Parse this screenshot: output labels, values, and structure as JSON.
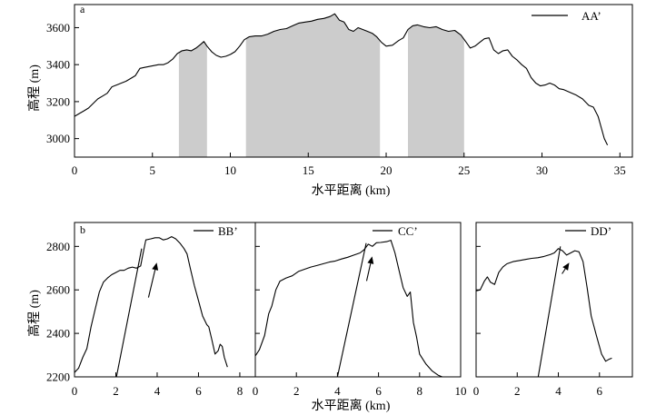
{
  "figure": {
    "row_a": {
      "panel_label": "a",
      "xlabel": "水平距离 (km)",
      "ylabel": "高程 (m)"
    },
    "row_b": {
      "panel_label": "b",
      "xlabel": "水平距离 (km)",
      "ylabel": "高程 (m)"
    }
  },
  "style": {
    "line_color": "#000000",
    "shade_color": "#cccccc",
    "frame_color": "#000000"
  },
  "chart_data": [
    {
      "type": "line",
      "xlim": [
        0,
        35.8
      ],
      "ylim": [
        2900,
        3725
      ],
      "xticks": [
        0,
        5,
        10,
        15,
        20,
        25,
        30,
        35
      ],
      "yticks": [
        3000,
        3200,
        3400,
        3600
      ],
      "ytick_labels_shown": true,
      "legend": "top-right",
      "shaded_x_ranges": [
        [
          6.7,
          8.5
        ],
        [
          11.0,
          19.6
        ],
        [
          21.4,
          25.0
        ]
      ],
      "series": [
        {
          "name": "AA’",
          "x": [
            0,
            0.3,
            0.6,
            0.9,
            1.2,
            1.5,
            1.8,
            2.1,
            2.4,
            2.7,
            3.0,
            3.3,
            3.6,
            3.9,
            4.2,
            4.5,
            4.8,
            5.1,
            5.4,
            5.7,
            6.0,
            6.3,
            6.6,
            6.9,
            7.2,
            7.5,
            7.8,
            8.1,
            8.3,
            8.5,
            8.8,
            9.1,
            9.4,
            9.7,
            10.0,
            10.3,
            10.6,
            10.9,
            11.2,
            11.6,
            12.0,
            12.4,
            12.8,
            13.2,
            13.6,
            14.0,
            14.4,
            14.8,
            15.2,
            15.6,
            16.0,
            16.4,
            16.7,
            17.0,
            17.3,
            17.6,
            17.9,
            18.2,
            18.5,
            18.8,
            19.1,
            19.4,
            19.7,
            20.0,
            20.4,
            20.8,
            21.1,
            21.4,
            21.7,
            22.0,
            22.4,
            22.8,
            23.2,
            23.6,
            24.0,
            24.4,
            24.8,
            25.1,
            25.4,
            25.7,
            26.0,
            26.3,
            26.6,
            26.9,
            27.2,
            27.5,
            27.8,
            28.1,
            28.4,
            28.7,
            29.0,
            29.3,
            29.6,
            29.9,
            30.2,
            30.5,
            30.8,
            31.1,
            31.4,
            31.8,
            32.2,
            32.6,
            33.0,
            33.3,
            33.6,
            33.8,
            34.0,
            34.2
          ],
          "y": [
            3120,
            3135,
            3150,
            3165,
            3190,
            3215,
            3230,
            3245,
            3280,
            3290,
            3300,
            3310,
            3325,
            3340,
            3380,
            3385,
            3390,
            3395,
            3400,
            3400,
            3410,
            3430,
            3460,
            3475,
            3480,
            3475,
            3490,
            3510,
            3525,
            3500,
            3470,
            3450,
            3440,
            3445,
            3455,
            3470,
            3500,
            3535,
            3550,
            3555,
            3555,
            3565,
            3580,
            3590,
            3595,
            3610,
            3625,
            3630,
            3635,
            3645,
            3650,
            3660,
            3675,
            3640,
            3630,
            3590,
            3580,
            3600,
            3590,
            3580,
            3570,
            3550,
            3520,
            3500,
            3505,
            3530,
            3545,
            3590,
            3610,
            3615,
            3605,
            3600,
            3605,
            3590,
            3580,
            3585,
            3560,
            3525,
            3490,
            3500,
            3520,
            3540,
            3545,
            3480,
            3460,
            3475,
            3480,
            3445,
            3425,
            3400,
            3380,
            3330,
            3300,
            3285,
            3290,
            3300,
            3290,
            3270,
            3265,
            3250,
            3235,
            3215,
            3180,
            3170,
            3120,
            3060,
            3000,
            2965
          ]
        }
      ]
    },
    {
      "type": "line",
      "xlim": [
        0,
        8.75
      ],
      "ylim": [
        2200,
        2910
      ],
      "xticks": [
        0,
        2,
        4,
        6,
        8
      ],
      "yticks": [
        2200,
        2400,
        2600,
        2800
      ],
      "ytick_labels_shown": true,
      "legend": "top-right",
      "series": [
        {
          "name": "BB’",
          "x": [
            0,
            0.2,
            0.4,
            0.6,
            0.8,
            1.0,
            1.2,
            1.4,
            1.6,
            1.8,
            2.0,
            2.2,
            2.4,
            2.6,
            2.8,
            3.0,
            3.2,
            3.3,
            3.45,
            3.7,
            3.9,
            4.1,
            4.3,
            4.5,
            4.7,
            4.9,
            5.1,
            5.3,
            5.45,
            5.6,
            5.8,
            6.0,
            6.2,
            6.4,
            6.5,
            6.65,
            6.8,
            6.95,
            7.05,
            7.15,
            7.25,
            7.4
          ],
          "y": [
            2220,
            2240,
            2290,
            2330,
            2430,
            2510,
            2590,
            2635,
            2655,
            2670,
            2680,
            2690,
            2690,
            2700,
            2705,
            2700,
            2710,
            2760,
            2830,
            2835,
            2840,
            2840,
            2830,
            2835,
            2845,
            2835,
            2815,
            2790,
            2765,
            2700,
            2620,
            2550,
            2480,
            2440,
            2430,
            2370,
            2305,
            2320,
            2350,
            2340,
            2290,
            2245
          ]
        }
      ],
      "straight_line": {
        "x": [
          2.03,
          3.25
        ],
        "y": [
          2200,
          2790
        ]
      },
      "arrow": {
        "from": [
          3.58,
          2565
        ],
        "to": [
          3.98,
          2725
        ]
      }
    },
    {
      "type": "line",
      "xlim": [
        0,
        10
      ],
      "ylim": [
        2200,
        2910
      ],
      "xticks": [
        0,
        2,
        4,
        6,
        8,
        10
      ],
      "yticks": [
        2200,
        2400,
        2600,
        2800
      ],
      "ytick_labels_shown": false,
      "legend": "top-right",
      "series": [
        {
          "name": "CC’",
          "x": [
            0,
            0.2,
            0.45,
            0.65,
            0.8,
            1.0,
            1.2,
            1.5,
            1.8,
            2.1,
            2.4,
            2.7,
            3.0,
            3.3,
            3.6,
            3.9,
            4.2,
            4.5,
            4.8,
            5.1,
            5.3,
            5.5,
            5.7,
            5.9,
            6.1,
            6.4,
            6.6,
            6.8,
            7.0,
            7.2,
            7.4,
            7.55,
            7.7,
            7.85,
            8.0,
            8.3,
            8.6,
            8.9,
            9.1
          ],
          "y": [
            2296,
            2325,
            2390,
            2490,
            2525,
            2600,
            2640,
            2655,
            2665,
            2685,
            2695,
            2705,
            2712,
            2720,
            2728,
            2733,
            2742,
            2750,
            2760,
            2770,
            2785,
            2810,
            2800,
            2817,
            2818,
            2822,
            2828,
            2770,
            2690,
            2610,
            2570,
            2590,
            2450,
            2385,
            2305,
            2260,
            2228,
            2208,
            2200
          ]
        }
      ],
      "straight_line": {
        "x": [
          4.0,
          5.4
        ],
        "y": [
          2200,
          2815
        ]
      },
      "arrow": {
        "from": [
          5.42,
          2641
        ],
        "to": [
          5.69,
          2754
        ]
      }
    },
    {
      "type": "line",
      "xlim": [
        0,
        7.6
      ],
      "ylim": [
        2200,
        2910
      ],
      "xticks": [
        0,
        2,
        4,
        6
      ],
      "yticks": [
        2200,
        2400,
        2600,
        2800
      ],
      "ytick_labels_shown": false,
      "legend": "top-right",
      "series": [
        {
          "name": "DD’",
          "x": [
            0,
            0.2,
            0.4,
            0.55,
            0.7,
            0.9,
            1.1,
            1.3,
            1.5,
            1.8,
            2.1,
            2.4,
            2.7,
            3.0,
            3.3,
            3.6,
            3.8,
            4.0,
            4.2,
            4.4,
            4.6,
            4.8,
            5.0,
            5.2,
            5.4,
            5.6,
            5.85,
            6.1,
            6.3,
            6.45,
            6.6
          ],
          "y": [
            2595,
            2600,
            2640,
            2660,
            2635,
            2625,
            2680,
            2705,
            2720,
            2730,
            2735,
            2740,
            2745,
            2748,
            2754,
            2762,
            2770,
            2790,
            2780,
            2760,
            2770,
            2780,
            2775,
            2730,
            2610,
            2480,
            2390,
            2305,
            2272,
            2280,
            2286
          ]
        }
      ],
      "straight_line": {
        "x": [
          3.02,
          4.1
        ],
        "y": [
          2200,
          2800
        ]
      },
      "arrow": {
        "from": [
          4.18,
          2674
        ],
        "to": [
          4.53,
          2725
        ]
      }
    }
  ]
}
